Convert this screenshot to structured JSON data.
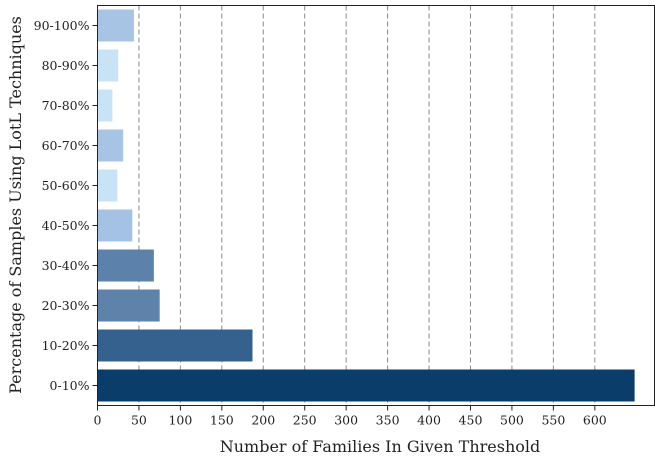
{
  "chart_data": {
    "type": "bar",
    "orientation": "horizontal",
    "title": "",
    "xlabel": "Number of Families In Given Threshold",
    "ylabel": "Percentage of Samples Using LotL Techniques",
    "categories": [
      "0-10%",
      "10-20%",
      "20-30%",
      "30-40%",
      "40-50%",
      "50-60%",
      "60-70%",
      "70-80%",
      "80-90%",
      "90-100%"
    ],
    "values": [
      648,
      187,
      75,
      68,
      42,
      24,
      31,
      18,
      25,
      44
    ],
    "colors": [
      "#0b3d6b",
      "#34618e",
      "#5f82aa",
      "#5c81aa",
      "#a4c2e3",
      "#c8e3f5",
      "#a7c4e4",
      "#c8e3f5",
      "#c8e3f5",
      "#a7c4e4"
    ],
    "xlim": [
      0,
      672
    ],
    "xticks": [
      0,
      50,
      100,
      150,
      200,
      250,
      300,
      350,
      400,
      450,
      500,
      550,
      600
    ],
    "grid": "vertical-dashed"
  }
}
